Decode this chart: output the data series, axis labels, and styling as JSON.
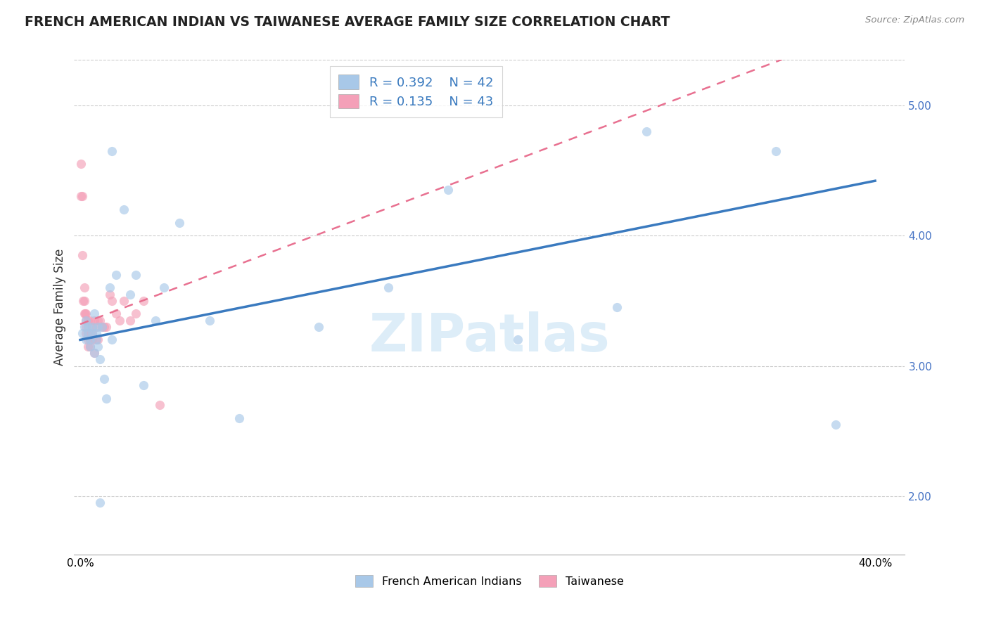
{
  "title": "FRENCH AMERICAN INDIAN VS TAIWANESE AVERAGE FAMILY SIZE CORRELATION CHART",
  "source": "Source: ZipAtlas.com",
  "ylabel": "Average Family Size",
  "yticks": [
    2.0,
    3.0,
    4.0,
    5.0
  ],
  "ylim": [
    1.55,
    5.35
  ],
  "xlim": [
    -0.003,
    0.415
  ],
  "legend_r1": "R = 0.392",
  "legend_n1": "N = 42",
  "legend_r2": "R = 0.135",
  "legend_n2": "N = 43",
  "blue_dot_color": "#a8c8e8",
  "pink_dot_color": "#f4a0b8",
  "blue_line_color": "#3a7abf",
  "pink_line_color": "#e87090",
  "scatter_alpha": 0.65,
  "scatter_size": 90,
  "french_x": [
    0.001,
    0.002,
    0.003,
    0.003,
    0.004,
    0.004,
    0.005,
    0.005,
    0.006,
    0.006,
    0.007,
    0.007,
    0.008,
    0.008,
    0.009,
    0.009,
    0.01,
    0.011,
    0.012,
    0.013,
    0.015,
    0.016,
    0.018,
    0.022,
    0.025,
    0.028,
    0.032,
    0.038,
    0.042,
    0.05,
    0.065,
    0.08,
    0.12,
    0.155,
    0.185,
    0.22,
    0.27,
    0.285,
    0.35,
    0.38,
    0.01,
    0.016
  ],
  "french_y": [
    3.25,
    3.3,
    3.2,
    3.35,
    3.25,
    3.3,
    3.2,
    3.15,
    3.3,
    3.25,
    3.4,
    3.1,
    3.2,
    3.25,
    3.15,
    3.3,
    3.05,
    3.3,
    2.9,
    2.75,
    3.6,
    3.2,
    3.7,
    4.2,
    3.55,
    3.7,
    2.85,
    3.35,
    3.6,
    4.1,
    3.35,
    2.6,
    3.3,
    3.6,
    4.35,
    3.2,
    3.45,
    4.8,
    4.65,
    2.55,
    1.95,
    4.65
  ],
  "taiwanese_x": [
    0.0003,
    0.0005,
    0.001,
    0.001,
    0.0015,
    0.002,
    0.002,
    0.002,
    0.0025,
    0.003,
    0.003,
    0.003,
    0.003,
    0.004,
    0.004,
    0.004,
    0.004,
    0.005,
    0.005,
    0.005,
    0.005,
    0.006,
    0.006,
    0.006,
    0.007,
    0.007,
    0.008,
    0.008,
    0.009,
    0.009,
    0.01,
    0.011,
    0.012,
    0.013,
    0.015,
    0.016,
    0.018,
    0.02,
    0.022,
    0.025,
    0.028,
    0.032,
    0.04
  ],
  "taiwanese_y": [
    4.3,
    4.55,
    4.3,
    3.85,
    3.5,
    3.5,
    3.6,
    3.4,
    3.4,
    3.4,
    3.35,
    3.3,
    3.25,
    3.35,
    3.25,
    3.2,
    3.15,
    3.35,
    3.25,
    3.2,
    3.15,
    3.3,
    3.25,
    3.2,
    3.35,
    3.1,
    3.3,
    3.2,
    3.35,
    3.2,
    3.35,
    3.3,
    3.3,
    3.3,
    3.55,
    3.5,
    3.4,
    3.35,
    3.5,
    3.35,
    3.4,
    3.5,
    2.7
  ],
  "blue_line_x0": 0.0,
  "blue_line_y0": 3.2,
  "blue_line_x1": 0.4,
  "blue_line_y1": 4.42,
  "pink_line_x0": 0.0,
  "pink_line_y0": 3.32,
  "pink_line_x1": 0.04,
  "pink_line_y1": 3.55
}
